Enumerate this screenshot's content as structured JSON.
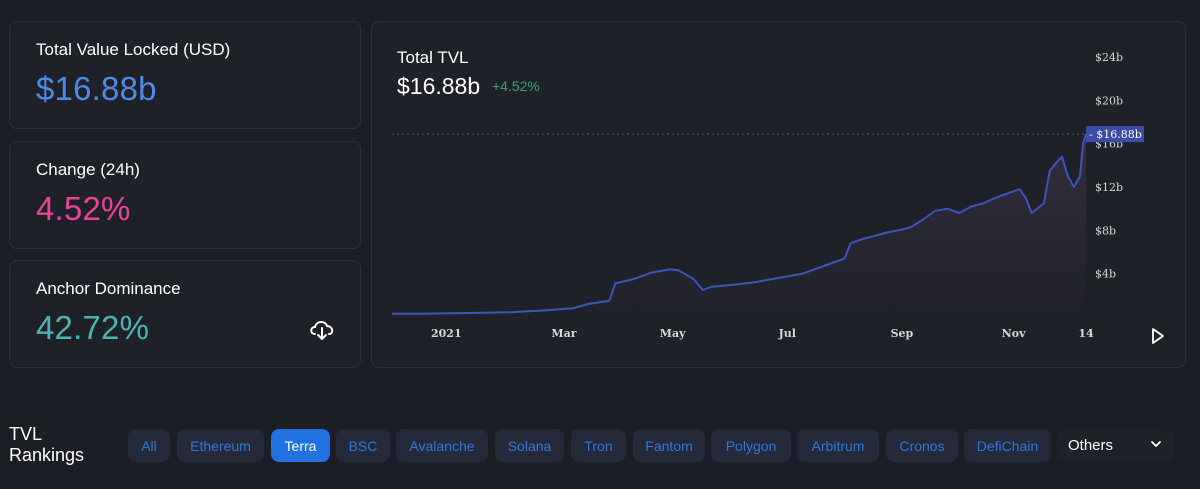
{
  "stats": [
    {
      "title": "Total Value Locked (USD)",
      "value": "$16.88b",
      "color": "#4e8ae8"
    },
    {
      "title": "Change (24h)",
      "value": "4.52%",
      "color": "#e8439a"
    },
    {
      "title": "Anchor Dominance",
      "value": "42.72%",
      "color": "#4bb3b3"
    }
  ],
  "download_icon": "cloud-download-icon",
  "chart": {
    "title": "Total TVL",
    "value": "$16.88b",
    "change": "+4.52%",
    "change_color": "#2fa86a",
    "line_color": "#3c55b8",
    "current_label": "$16.88b"
  },
  "chart_data": {
    "type": "area",
    "title": "Total TVL",
    "x_ticks": [
      "2021",
      "Mar",
      "May",
      "Jul",
      "Sep",
      "Nov",
      "14"
    ],
    "y_ticks": [
      "$4b",
      "$8b",
      "$12b",
      "$16b",
      "$20b",
      "$24b"
    ],
    "ylim": [
      0,
      24
    ],
    "y_unit": "$b",
    "current_value": 16.88,
    "series": [
      {
        "values": [
          [
            0.0,
            0.3
          ],
          [
            0.5,
            0.3
          ],
          [
            1.0,
            0.35
          ],
          [
            1.5,
            0.4
          ],
          [
            2.0,
            0.45
          ],
          [
            2.5,
            0.6
          ],
          [
            3.0,
            0.8
          ],
          [
            3.25,
            1.2
          ],
          [
            3.6,
            1.5
          ],
          [
            3.7,
            3.1
          ],
          [
            4.0,
            3.5
          ],
          [
            4.3,
            4.1
          ],
          [
            4.6,
            4.4
          ],
          [
            4.75,
            4.3
          ],
          [
            5.0,
            3.5
          ],
          [
            5.15,
            2.5
          ],
          [
            5.3,
            2.8
          ],
          [
            5.7,
            3.0
          ],
          [
            6.0,
            3.2
          ],
          [
            6.4,
            3.6
          ],
          [
            6.8,
            4.0
          ],
          [
            7.2,
            4.8
          ],
          [
            7.5,
            5.4
          ],
          [
            7.6,
            6.8
          ],
          [
            7.8,
            7.2
          ],
          [
            8.0,
            7.5
          ],
          [
            8.2,
            7.8
          ],
          [
            8.4,
            8.0
          ],
          [
            8.6,
            8.3
          ],
          [
            8.8,
            9.0
          ],
          [
            9.0,
            9.8
          ],
          [
            9.2,
            10.0
          ],
          [
            9.4,
            9.6
          ],
          [
            9.6,
            10.2
          ],
          [
            9.8,
            10.5
          ],
          [
            10.0,
            11.0
          ],
          [
            10.2,
            11.4
          ],
          [
            10.4,
            11.8
          ],
          [
            10.5,
            11.0
          ],
          [
            10.6,
            9.6
          ],
          [
            10.8,
            10.5
          ],
          [
            10.9,
            13.5
          ],
          [
            11.0,
            14.2
          ],
          [
            11.1,
            14.8
          ],
          [
            11.2,
            13.0
          ],
          [
            11.3,
            12.0
          ],
          [
            11.4,
            13.0
          ],
          [
            11.45,
            16.0
          ],
          [
            11.5,
            16.88
          ]
        ]
      }
    ],
    "grid": false
  },
  "rankings": {
    "title": "TVL Rankings",
    "tabs": [
      "All",
      "Ethereum",
      "Terra",
      "BSC",
      "Avalanche",
      "Solana",
      "Tron",
      "Fantom",
      "Polygon",
      "Arbitrum",
      "Cronos",
      "DefiChain"
    ],
    "active": "Terra",
    "others_label": "Others"
  }
}
